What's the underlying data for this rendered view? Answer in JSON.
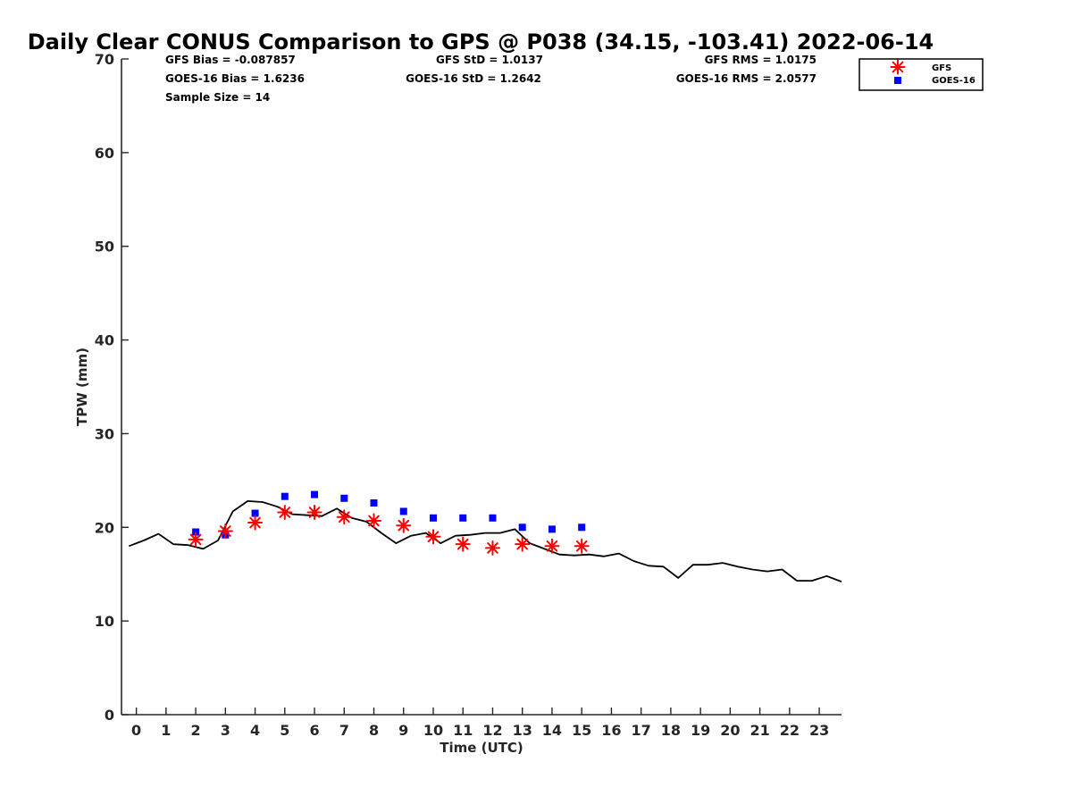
{
  "colors": {
    "gfs": "#ff0000",
    "goes": "#0000ff",
    "gps": "#000000",
    "axis": "#262626"
  },
  "chart_data": {
    "type": "scatter",
    "title": "Daily Clear CONUS Comparison to GPS @ P038 (34.15, -103.41) 2022-06-14",
    "xlabel": "Time (UTC)",
    "ylabel": "TPW (mm)",
    "xlim": [
      -0.5,
      23.75
    ],
    "ylim": [
      0,
      70
    ],
    "xticks": [
      0,
      1,
      2,
      3,
      4,
      5,
      6,
      7,
      8,
      9,
      10,
      11,
      12,
      13,
      14,
      15,
      16,
      17,
      18,
      19,
      20,
      21,
      22,
      23
    ],
    "yticks": [
      0,
      10,
      20,
      30,
      40,
      50,
      60,
      70
    ],
    "grid": false,
    "legend_position": "top-right",
    "stats": {
      "gfs_bias": "GFS Bias = -0.087857",
      "gfs_std": "GFS StD = 1.0137",
      "gfs_rms": "GFS RMS = 1.0175",
      "goes_bias": "GOES-16 Bias = 1.6236",
      "goes_std": "GOES-16 StD = 1.2642",
      "goes_rms": "GOES-16 RMS = 2.0577",
      "sample_size": "Sample Size = 14"
    },
    "series": [
      {
        "name": "GFS",
        "marker": "asterisk",
        "x": [
          2,
          3,
          4,
          5,
          6,
          7,
          8,
          9,
          10,
          11,
          12,
          13,
          14,
          15
        ],
        "y": [
          18.7,
          19.6,
          20.5,
          21.6,
          21.6,
          21.1,
          20.7,
          20.2,
          19.0,
          18.2,
          17.8,
          18.2,
          18.0,
          18.0
        ]
      },
      {
        "name": "GOES-16",
        "marker": "square",
        "x": [
          2,
          3,
          4,
          5,
          6,
          7,
          8,
          9,
          10,
          11,
          12,
          13,
          14,
          15
        ],
        "y": [
          19.5,
          19.2,
          21.5,
          23.3,
          23.5,
          23.1,
          22.6,
          21.7,
          21.0,
          21.0,
          21.0,
          20.0,
          19.8,
          20.0
        ]
      },
      {
        "marker": "line",
        "x": [
          -0.25,
          0.25,
          0.75,
          1.25,
          1.75,
          2.25,
          2.75,
          3.25,
          3.75,
          4.25,
          4.75,
          5.25,
          5.75,
          6.25,
          6.75,
          7.25,
          7.75,
          8.25,
          8.75,
          9.25,
          9.75,
          10.25,
          10.75,
          11.25,
          11.75,
          12.25,
          12.75,
          13.25,
          13.75,
          14.25,
          14.75,
          15.25,
          15.75,
          16.25,
          16.75,
          17.25,
          17.75,
          18.25,
          18.75,
          19.25,
          19.75,
          20.25,
          20.75,
          21.25,
          21.75,
          22.25,
          22.75,
          23.25,
          23.75
        ],
        "y": [
          18.0,
          18.6,
          19.3,
          18.2,
          18.1,
          17.7,
          18.6,
          21.7,
          22.8,
          22.7,
          22.2,
          21.4,
          21.3,
          21.2,
          22.0,
          21.0,
          20.6,
          19.4,
          18.3,
          19.1,
          19.4,
          18.3,
          19.1,
          19.2,
          19.4,
          19.4,
          19.8,
          18.3,
          17.7,
          17.1,
          17.0,
          17.1,
          16.9,
          17.2,
          16.4,
          15.9,
          15.8,
          14.6,
          16.0,
          16.0,
          16.2,
          15.8,
          15.5,
          15.3,
          15.5,
          14.3,
          14.3,
          14.8,
          14.2
        ]
      }
    ]
  }
}
